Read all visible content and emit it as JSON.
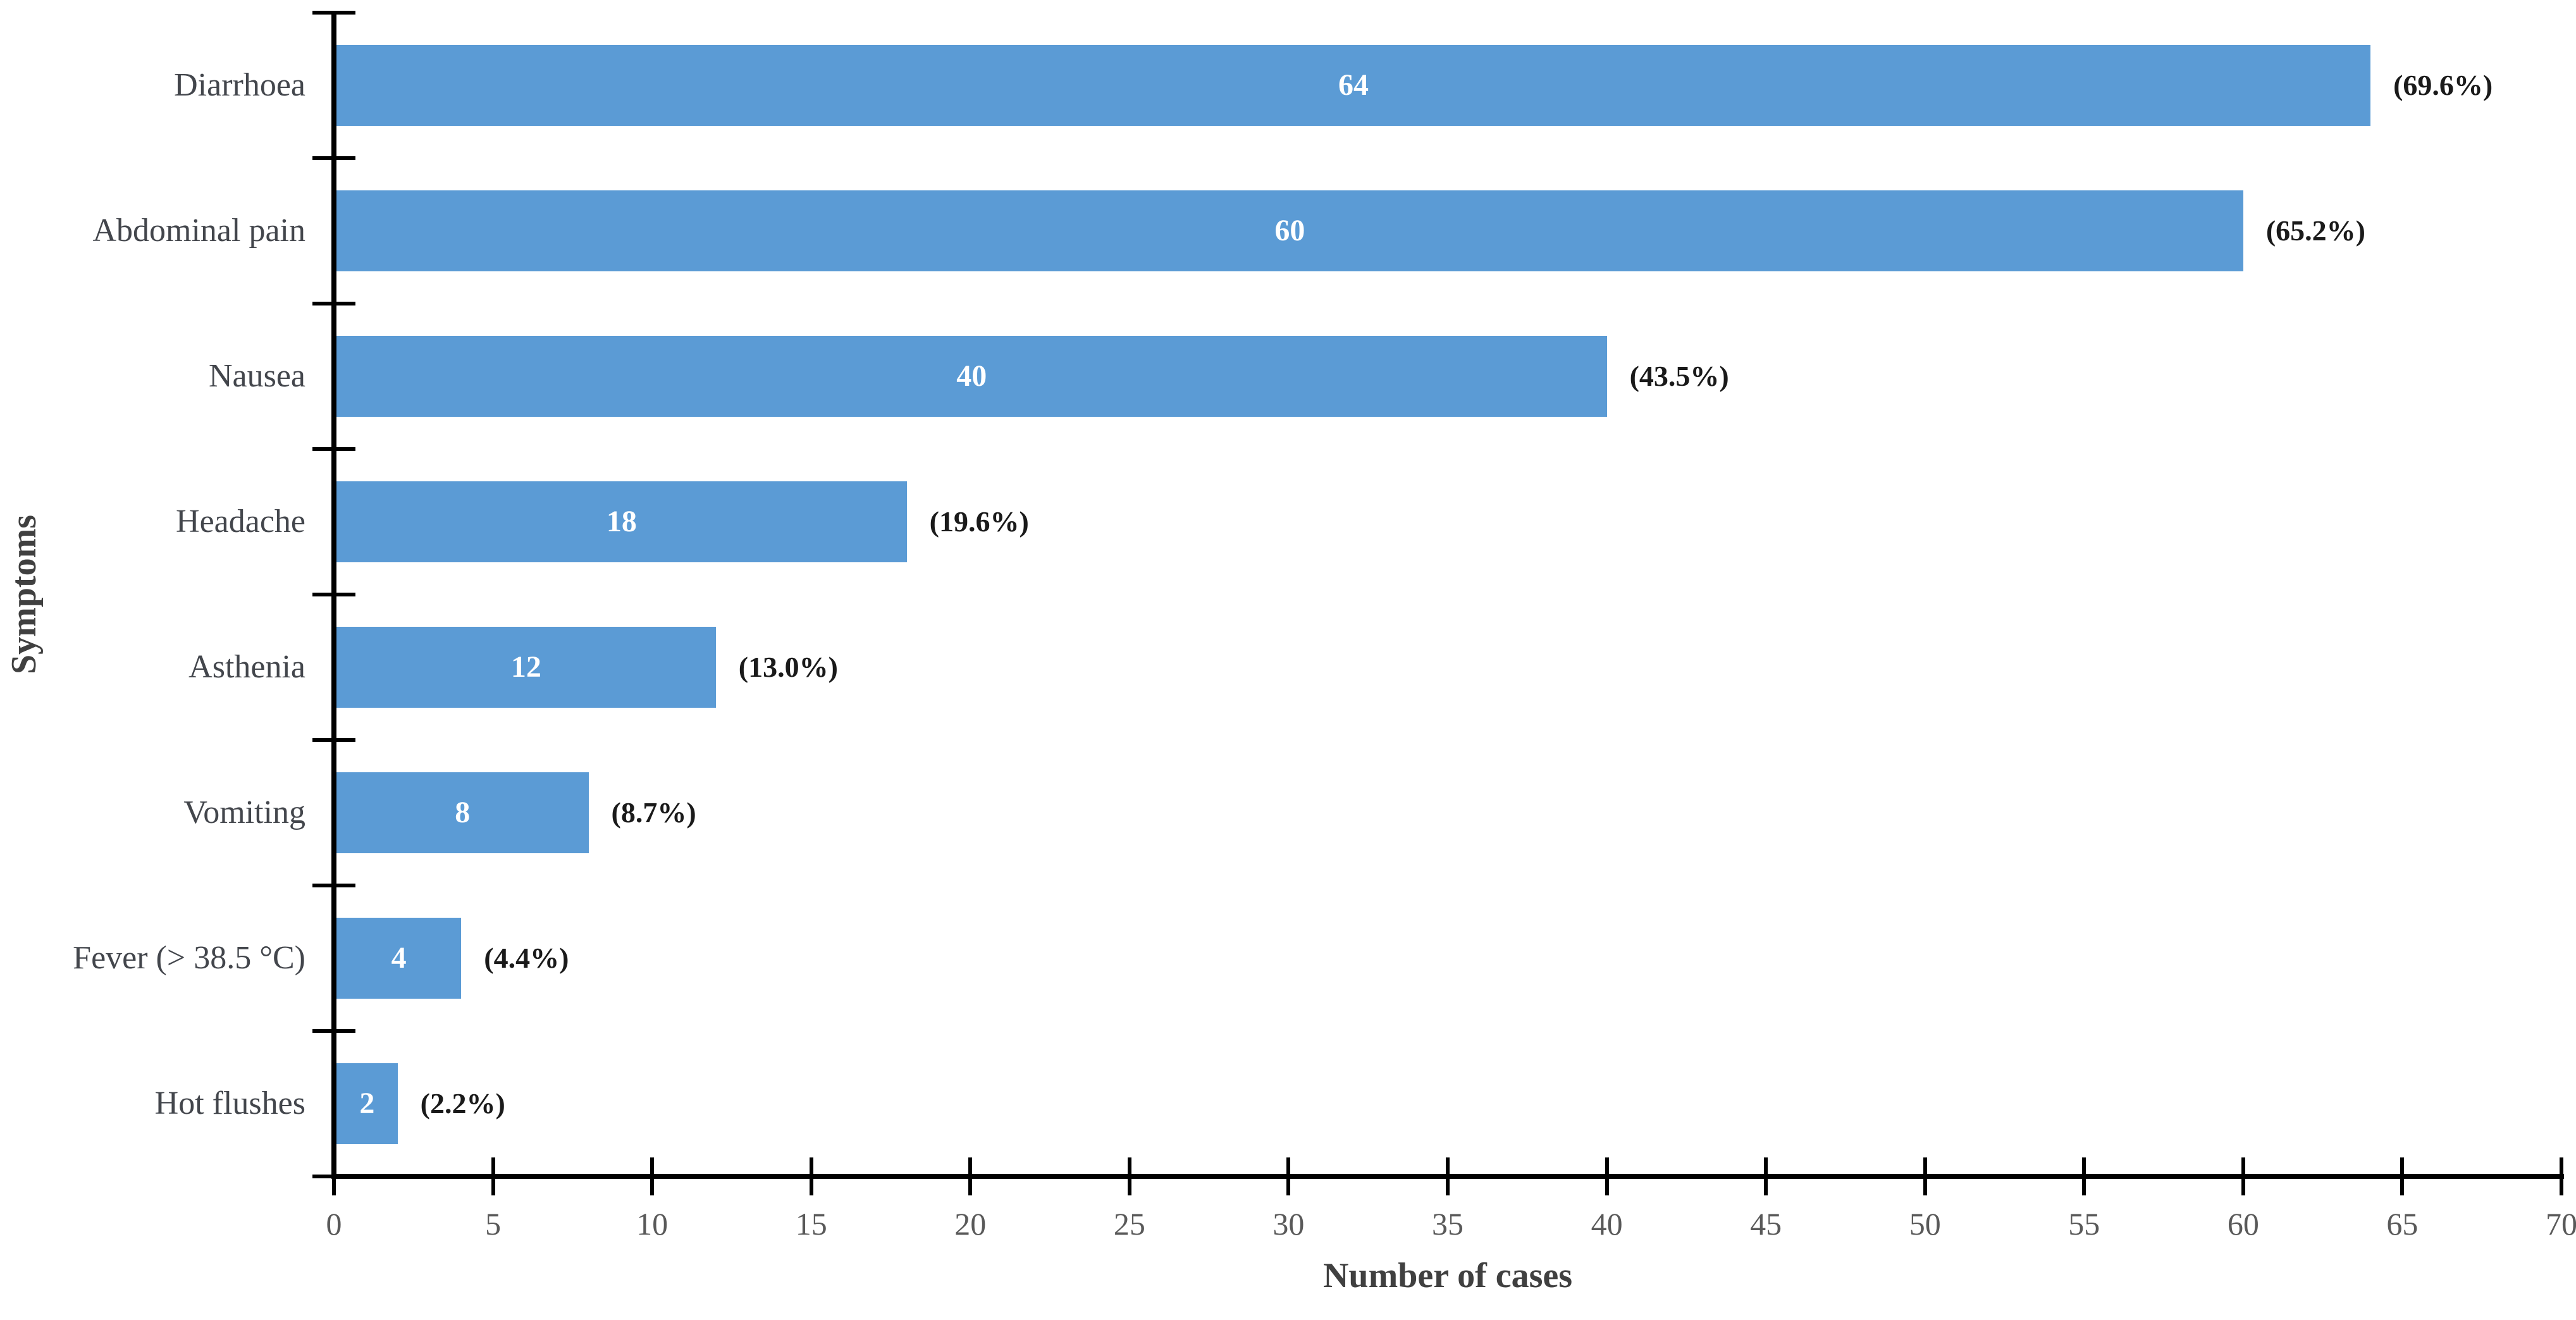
{
  "chart_data": {
    "type": "bar",
    "orientation": "horizontal",
    "title": "",
    "xlabel": "Number of cases",
    "ylabel": "Symptoms",
    "categories": [
      "Diarrhoea",
      "Abdominal pain",
      "Nausea",
      "Headache",
      "Asthenia",
      "Vomiting",
      "Fever (> 38.5 °C)",
      "Hot flushes"
    ],
    "values": [
      64,
      60,
      40,
      18,
      12,
      8,
      4,
      2
    ],
    "bar_labels": [
      "64",
      "60",
      "40",
      "18",
      "12",
      "8",
      "4",
      "2"
    ],
    "pct_labels": [
      "(69.6%)",
      "(65.2%)",
      "(43.5%)",
      "(19.6%)",
      "(13.0%)",
      "(8.7%)",
      "(4.4%)",
      "(2.2%)"
    ],
    "xlim": [
      0,
      70
    ],
    "xticks": [
      0,
      5,
      10,
      15,
      20,
      25,
      30,
      35,
      40,
      45,
      50,
      55,
      60,
      65,
      70
    ],
    "grid": false,
    "legend_position": "none",
    "colors": {
      "bar": "#5B9BD5",
      "value_label": "#FFFFFF",
      "pct_label": "#1A1A1A",
      "category_label": "#43464C",
      "tick_label": "#595959",
      "axis": "#000000",
      "axis_title": "#404040",
      "background": "#FFFFFF"
    }
  }
}
